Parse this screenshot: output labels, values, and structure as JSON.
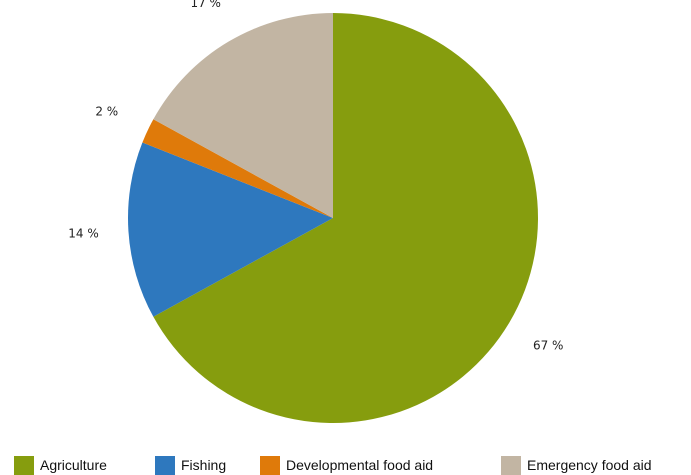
{
  "chart_data": {
    "type": "pie",
    "title": "",
    "slices": [
      {
        "name": "Agriculture",
        "value": 67,
        "label": "67 %",
        "color": "#869d0e"
      },
      {
        "name": "Fishing",
        "value": 14,
        "label": "14 %",
        "color": "#2e78be"
      },
      {
        "name": "Developmental food aid",
        "value": 2,
        "label": "2 %",
        "color": "#df7a0a"
      },
      {
        "name": "Emergency food aid",
        "value": 17,
        "label": "17 %",
        "color": "#c2b5a3"
      }
    ],
    "legend_position": "bottom",
    "start_angle": "12 o'clock",
    "direction": "clockwise"
  }
}
